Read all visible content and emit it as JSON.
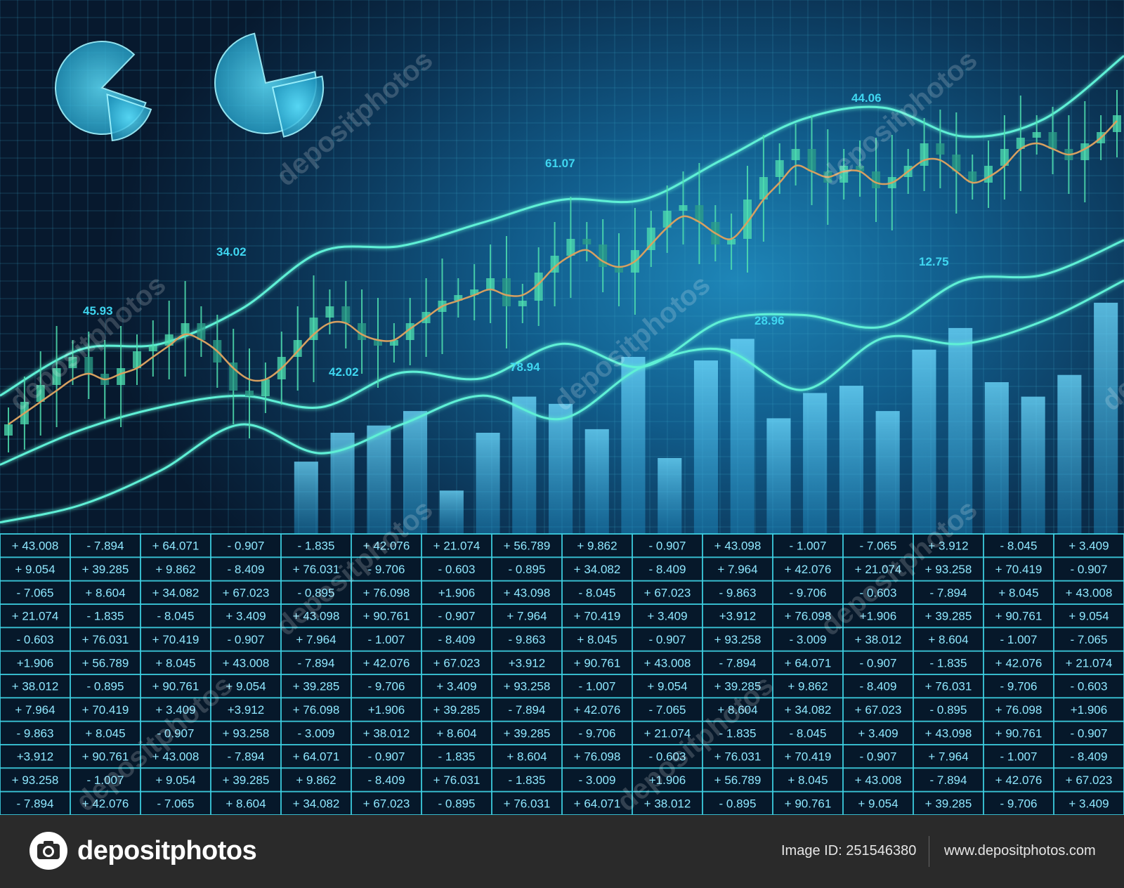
{
  "chart_data": {
    "type": "line",
    "description_type": "composite financial dashboard: candlestick series with moving average, bar chart, three line series, two pie charts, data table",
    "colors": {
      "background_dark": "#07192e",
      "background_glow": "#1e86b8",
      "line": "#5ff0d6",
      "candle": "#4fe0b0",
      "moving_average": "#d8a060",
      "bar": "#4ec8f0",
      "grid": "#3aa7c7",
      "table_line": "#3fd6e8",
      "label": "#3fd6f0"
    },
    "grid": true,
    "value_labels": [
      "45.93",
      "34.02",
      "42.02",
      "61.07",
      "78.94",
      "28.96",
      "44.06",
      "12.75"
    ],
    "pie_charts": [
      {
        "slices": [
          0.82,
          0.18
        ]
      },
      {
        "slices": [
          0.75,
          0.25
        ]
      }
    ],
    "bars": {
      "values": [
        20,
        28,
        30,
        34,
        12,
        28,
        38,
        36,
        29,
        49,
        21,
        48,
        54,
        32,
        39,
        41,
        34,
        51,
        57,
        42,
        38,
        44,
        64
      ],
      "ylim": [
        0,
        70
      ]
    },
    "lines": [
      {
        "values": [
          24,
          32,
          33,
          39,
          49,
          50,
          54,
          58,
          58,
          65,
          72,
          74,
          69,
          72,
          83
        ]
      },
      {
        "values": [
          12,
          18,
          22,
          24,
          22,
          28,
          27,
          33,
          29,
          37,
          38,
          36,
          44,
          45,
          51
        ]
      },
      {
        "values": [
          2,
          5,
          11,
          19,
          14,
          19,
          24,
          20,
          29,
          32,
          25,
          34,
          33,
          37,
          44
        ]
      }
    ],
    "candles": {
      "close": [
        12,
        16,
        19,
        22,
        24,
        21,
        19,
        22,
        25,
        26,
        28,
        30,
        27,
        23,
        18,
        17,
        20,
        24,
        27,
        31,
        33,
        30,
        27,
        26,
        27,
        30,
        32,
        34,
        35,
        36,
        38,
        33,
        34,
        39,
        42,
        45,
        44,
        40,
        39,
        43,
        47,
        50,
        51,
        48,
        44,
        45,
        52,
        56,
        59,
        61,
        57,
        55,
        58,
        57,
        54,
        56,
        58,
        62,
        60,
        57,
        55,
        58,
        61,
        63,
        64,
        61,
        59,
        62,
        64,
        67
      ],
      "moving_average": [
        12,
        14,
        16,
        18,
        20,
        21,
        20,
        21,
        22,
        24,
        26,
        28,
        27,
        25,
        22,
        20,
        20,
        22,
        25,
        28,
        30,
        30,
        28,
        27,
        27,
        29,
        31,
        33,
        34,
        35,
        36,
        35,
        35,
        37,
        40,
        42,
        43,
        41,
        40,
        41,
        44,
        47,
        49,
        48,
        46,
        45,
        48,
        52,
        55,
        58,
        57,
        56,
        57,
        57,
        55,
        55,
        57,
        59,
        59,
        57,
        55,
        56,
        58,
        61,
        62,
        61,
        60,
        61,
        63,
        66
      ]
    }
  },
  "table": {
    "columns": 16,
    "rows": [
      [
        "+ 43.008",
        "- 7.894",
        "+ 64.071",
        "- 0.907",
        "- 1.835",
        "+ 42.076",
        "+ 21.074",
        "+ 56.789",
        "+ 9.862",
        "- 0.907",
        "+ 43.098",
        "- 1.007",
        "- 7.065",
        "+ 3.912",
        "- 8.045",
        "+ 3.409"
      ],
      [
        "+ 9.054",
        "+ 39.285",
        "+ 9.862",
        "- 8.409",
        "+ 76.031",
        "- 9.706",
        "- 0.603",
        "- 0.895",
        "+ 34.082",
        "- 8.409",
        "+ 7.964",
        "+ 42.076",
        "+ 21.074",
        "+ 93.258",
        "+ 70.419",
        "- 0.907"
      ],
      [
        "- 7.065",
        "+ 8.604",
        "+ 34.082",
        "+ 67.023",
        "- 0.895",
        "+ 76.098",
        "+1.906",
        "+ 43.098",
        "- 8.045",
        "+ 67.023",
        "- 9.863",
        "- 9.706",
        "- 0.603",
        "- 7.894",
        "+ 8.045",
        "+ 43.008"
      ],
      [
        "+ 21.074",
        "- 1.835",
        "- 8.045",
        "+ 3.409",
        "+ 43.098",
        "+ 90.761",
        "- 0.907",
        "+ 7.964",
        "+ 70.419",
        "+ 3.409",
        "+3.912",
        "+ 76.098",
        "+1.906",
        "+ 39.285",
        "+ 90.761",
        "+ 9.054"
      ],
      [
        "- 0.603",
        "+ 76.031",
        "+ 70.419",
        "- 0.907",
        "+ 7.964",
        "- 1.007",
        "- 8.409",
        "- 9.863",
        "+ 8.045",
        "- 0.907",
        "+ 93.258",
        "- 3.009",
        "+ 38.012",
        "+ 8.604",
        "- 1.007",
        "- 7.065"
      ],
      [
        "+1.906",
        "+ 56.789",
        "+ 8.045",
        "+ 43.008",
        "- 7.894",
        "+ 42.076",
        "+ 67.023",
        "+3.912",
        "+ 90.761",
        "+ 43.008",
        "- 7.894",
        "+ 64.071",
        "- 0.907",
        "- 1.835",
        "+ 42.076",
        "+ 21.074"
      ],
      [
        "+ 38.012",
        "- 0.895",
        "+ 90.761",
        "+ 9.054",
        "+ 39.285",
        "- 9.706",
        "+ 3.409",
        "+ 93.258",
        "- 1.007",
        "+ 9.054",
        "+ 39.285",
        "+ 9.862",
        "- 8.409",
        "+ 76.031",
        "- 9.706",
        "- 0.603"
      ],
      [
        "+ 7.964",
        "+ 70.419",
        "+ 3.409",
        "+3.912",
        "+ 76.098",
        "+1.906",
        "+ 39.285",
        "- 7.894",
        "+ 42.076",
        "- 7.065",
        "+ 8.604",
        "+ 34.082",
        "+ 67.023",
        "- 0.895",
        "+ 76.098",
        "+1.906"
      ],
      [
        "- 9.863",
        "+ 8.045",
        "- 0.907",
        "+ 93.258",
        "- 3.009",
        "+ 38.012",
        "+ 8.604",
        "+ 39.285",
        "- 9.706",
        "+ 21.074",
        "- 1.835",
        "- 8.045",
        "+ 3.409",
        "+ 43.098",
        "+ 90.761",
        "- 0.907"
      ],
      [
        "+3.912",
        "+ 90.761",
        "+ 43.008",
        "- 7.894",
        "+ 64.071",
        "- 0.907",
        "- 1.835",
        "+ 8.604",
        "+ 76.098",
        "- 0.603",
        "+ 76.031",
        "+ 70.419",
        "- 0.907",
        "+ 7.964",
        "- 1.007",
        "- 8.409"
      ],
      [
        "+ 93.258",
        "- 1.007",
        "+ 9.054",
        "+ 39.285",
        "+ 9.862",
        "- 8.409",
        "+ 76.031",
        "- 1.835",
        "- 3.009",
        "+1.906",
        "+ 56.789",
        "+ 8.045",
        "+ 43.008",
        "- 7.894",
        "+ 42.076",
        "+ 67.023"
      ],
      [
        "- 7.894",
        "+ 42.076",
        "- 7.065",
        "+ 8.604",
        "+ 34.082",
        "+ 67.023",
        "- 0.895",
        "+ 76.031",
        "+ 64.071",
        "+ 38.012",
        "- 0.895",
        "+ 90.761",
        "+ 9.054",
        "+ 39.285",
        "- 9.706",
        "+ 3.409"
      ]
    ]
  },
  "watermark": {
    "text": "depositphotos"
  },
  "footer": {
    "brand": "depositphotos",
    "image_id": "Image ID: 251546380",
    "url": "www.depositphotos.com",
    "logo_icon": "camera-icon"
  }
}
